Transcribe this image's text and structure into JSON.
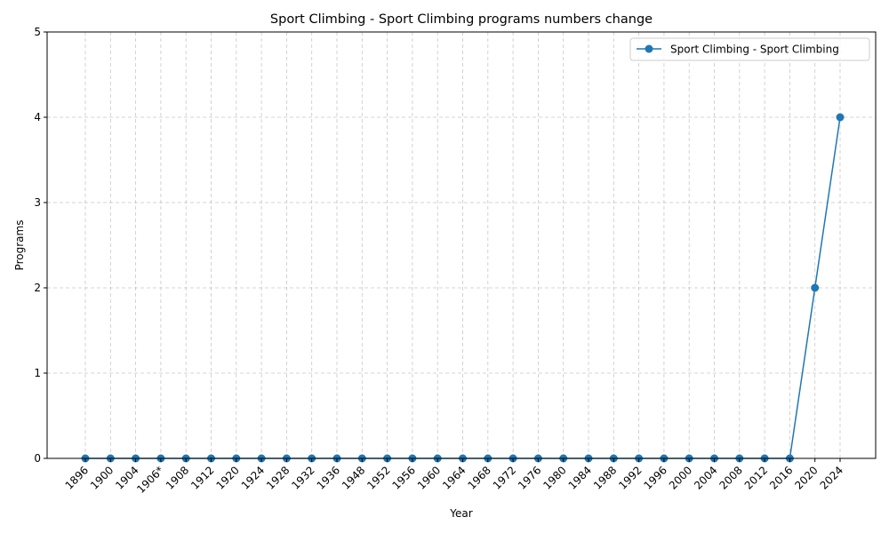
{
  "chart_data": {
    "type": "line",
    "title": "Sport Climbing - Sport Climbing programs numbers change",
    "xlabel": "Year",
    "ylabel": "Programs",
    "categories": [
      "1896",
      "1900",
      "1904",
      "1906*",
      "1908",
      "1912",
      "1920",
      "1924",
      "1928",
      "1932",
      "1936",
      "1948",
      "1952",
      "1956",
      "1960",
      "1964",
      "1968",
      "1972",
      "1976",
      "1980",
      "1984",
      "1988",
      "1992",
      "1996",
      "2000",
      "2004",
      "2008",
      "2012",
      "2016",
      "2020",
      "2024"
    ],
    "series": [
      {
        "name": "Sport Climbing - Sport Climbing",
        "color": "#1f77b4",
        "values": [
          0,
          0,
          0,
          0,
          0,
          0,
          0,
          0,
          0,
          0,
          0,
          0,
          0,
          0,
          0,
          0,
          0,
          0,
          0,
          0,
          0,
          0,
          0,
          0,
          0,
          0,
          0,
          0,
          0,
          2,
          4
        ]
      }
    ],
    "ylim": [
      0,
      5
    ],
    "yticks": [
      0,
      1,
      2,
      3,
      4,
      5
    ],
    "grid": true,
    "legend_position": "top-right"
  }
}
